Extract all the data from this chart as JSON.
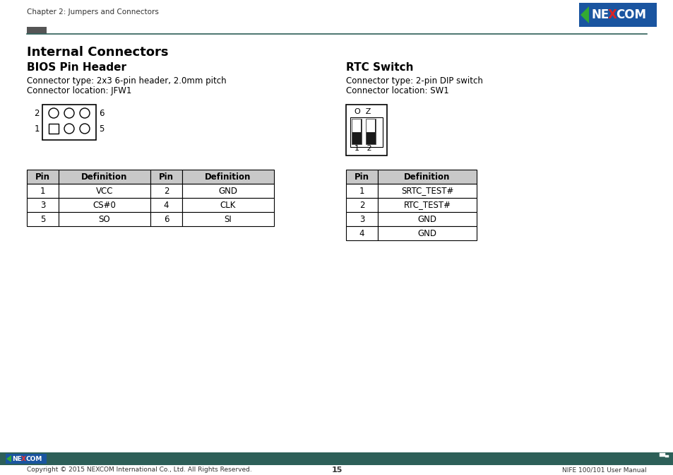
{
  "page_title": "Chapter 2: Jumpers and Connectors",
  "section_title": "Internal Connectors",
  "bios_title": "BIOS Pin Header",
  "bios_line1": "Connector type: 2x3 6-pin header, 2.0mm pitch",
  "bios_line2": "Connector location: JFW1",
  "rtc_title": "RTC Switch",
  "rtc_line1": "Connector type: 2-pin DIP switch",
  "rtc_line2": "Connector location: SW1",
  "bios_table_headers": [
    "Pin",
    "Definition",
    "Pin",
    "Definition"
  ],
  "bios_table_rows": [
    [
      "1",
      "VCC",
      "2",
      "GND"
    ],
    [
      "3",
      "CS#0",
      "4",
      "CLK"
    ],
    [
      "5",
      "SO",
      "6",
      "SI"
    ]
  ],
  "rtc_table_headers": [
    "Pin",
    "Definition"
  ],
  "rtc_table_rows": [
    [
      "1",
      "SRTC_TEST#"
    ],
    [
      "2",
      "RTC_TEST#"
    ],
    [
      "3",
      "GND"
    ],
    [
      "4",
      "GND"
    ]
  ],
  "footer_bar_color": "#2d5f58",
  "footer_text_left": "Copyright © 2015 NEXCOM International Co., Ltd. All Rights Reserved.",
  "footer_text_center": "15",
  "footer_text_right": "NIFE 100/101 User Manual",
  "header_line_color": "#2d5f58",
  "nexcom_blue": "#1a55a0",
  "table_header_bg": "#c8c8c8",
  "bg_color": "#ffffff"
}
